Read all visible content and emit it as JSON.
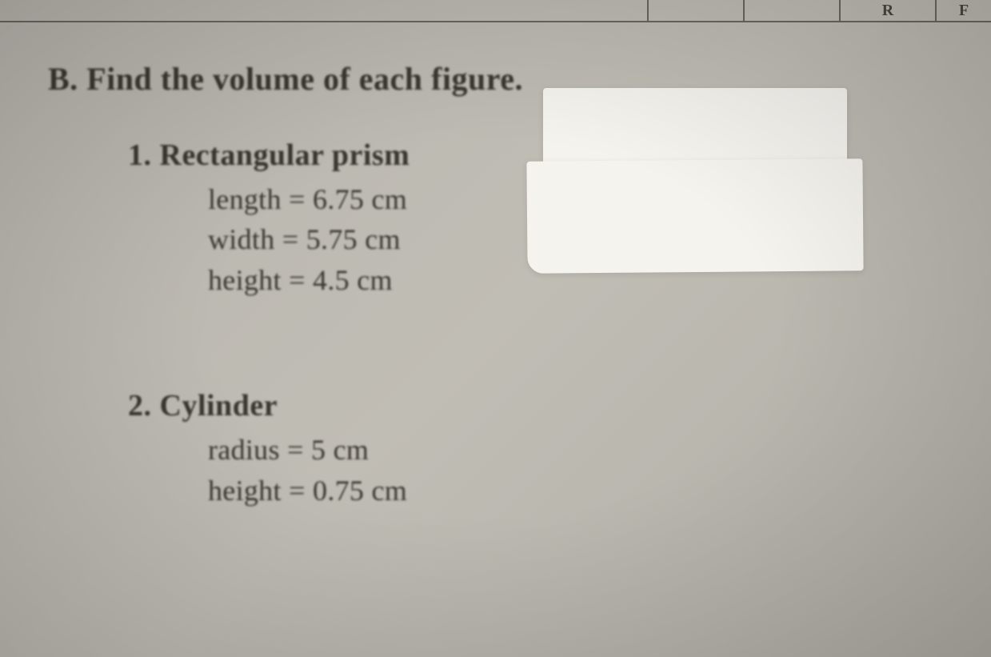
{
  "top_row": {
    "cell1": "",
    "cell2": "",
    "cell3": "R",
    "cell4": "F"
  },
  "section": {
    "label": "B.",
    "instruction": "Find the volume of each figure."
  },
  "problems": [
    {
      "number": "1.",
      "title": "Rectangular prism",
      "lines": [
        {
          "label": "length",
          "equals": "=",
          "value": "6.75 cm"
        },
        {
          "label": "width",
          "equals": "=",
          "value": "5.75 cm"
        },
        {
          "label": "height",
          "equals": "=",
          "value": "4.5 cm"
        }
      ]
    },
    {
      "number": "2.",
      "title": "Cylinder",
      "lines": [
        {
          "label": "radius",
          "equals": "=",
          "value": "5 cm"
        },
        {
          "label": "height",
          "equals": "=",
          "value": "0.75 cm"
        }
      ]
    }
  ],
  "colors": {
    "paper": "#b8b5ae",
    "text": "#3a3530",
    "whiteout": "#f5f3ee",
    "border": "#6a6560"
  }
}
